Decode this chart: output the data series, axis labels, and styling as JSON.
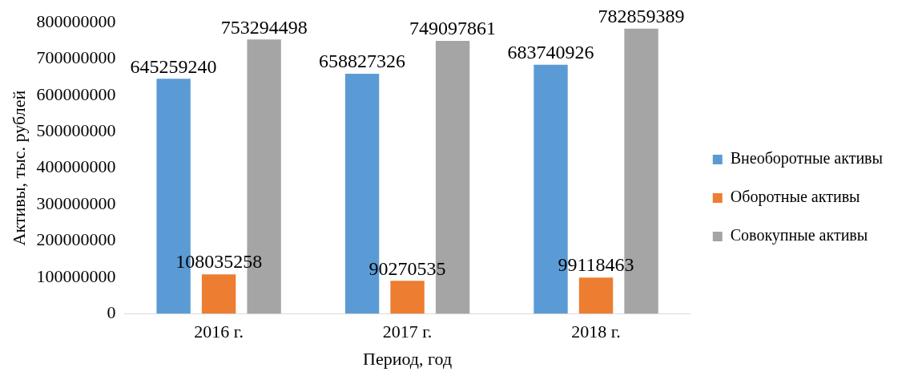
{
  "chart_data": {
    "type": "bar",
    "xlabel": "Период, год",
    "ylabel": "Активы, тыс. рублей",
    "categories": [
      "2016 г.",
      "2017 г.",
      "2018 г."
    ],
    "series": [
      {
        "name": "Внеоборотные активы",
        "color": "#5b9bd5",
        "values": [
          645259240,
          658827326,
          683740926
        ]
      },
      {
        "name": "Оборотные активы",
        "color": "#ed7d31",
        "values": [
          108035258,
          90270535,
          99118463
        ]
      },
      {
        "name": "Совокупные активы",
        "color": "#a5a5a5",
        "values": [
          753294498,
          749097861,
          782859389
        ]
      }
    ],
    "ylim": [
      0,
      800000000
    ],
    "yticks": [
      0,
      100000000,
      200000000,
      300000000,
      400000000,
      500000000,
      600000000,
      700000000,
      800000000
    ],
    "grid": false,
    "legend": "right",
    "data_labels": true
  }
}
